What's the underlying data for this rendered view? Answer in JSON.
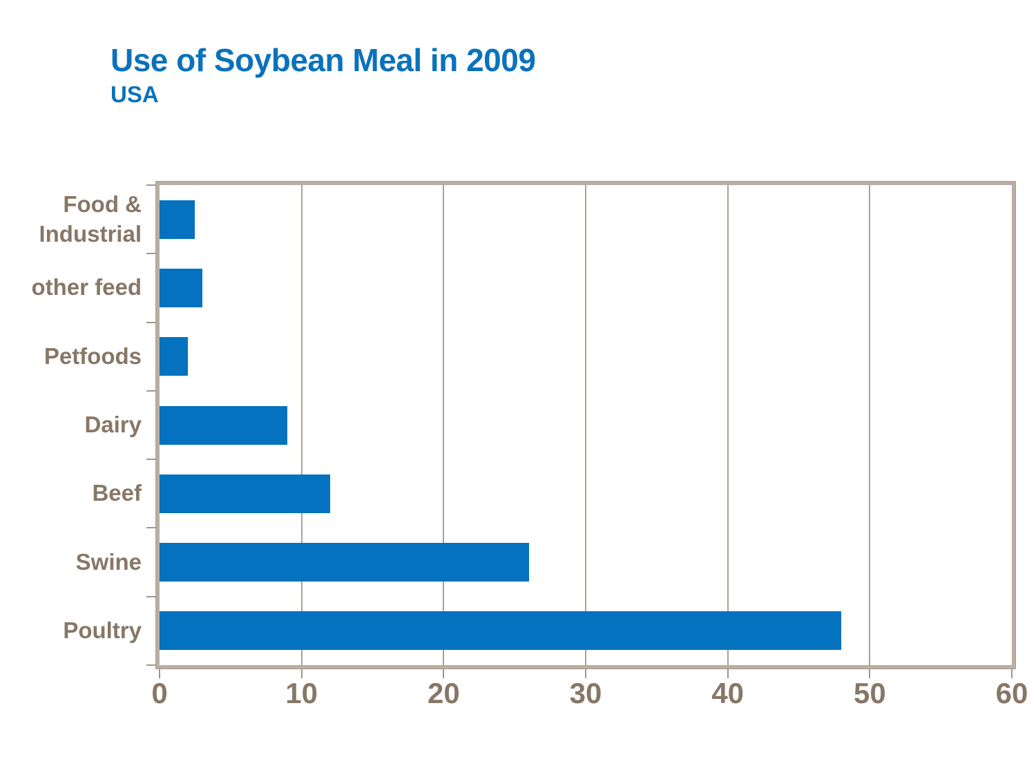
{
  "title": "Use of Soybean Meal in 2009",
  "subtitle": "USA",
  "colors": {
    "title": "#0b72bc",
    "bar": "#0472be",
    "label": "#877766",
    "axis_frame": "#b9aea2",
    "gridline": "#aba196",
    "tick": "#a0968a",
    "background": "#ffffff"
  },
  "chart_data": {
    "type": "bar",
    "orientation": "horizontal",
    "title": "Use of Soybean Meal in 2009",
    "subtitle": "USA",
    "categories": [
      "Food & Industrial",
      "other feed",
      "Petfoods",
      "Dairy",
      "Beef",
      "Swine",
      "Poultry"
    ],
    "categories_order": "top-to-bottom",
    "values": [
      2.5,
      3,
      2,
      9,
      12,
      26,
      48
    ],
    "xlabel": "",
    "ylabel": "",
    "xlim": [
      0,
      60
    ],
    "xticks": [
      0,
      10,
      20,
      30,
      40,
      50,
      60
    ],
    "grid": "vertical gridlines at x ticks",
    "legend": "none",
    "bar_color": "#0472be"
  }
}
